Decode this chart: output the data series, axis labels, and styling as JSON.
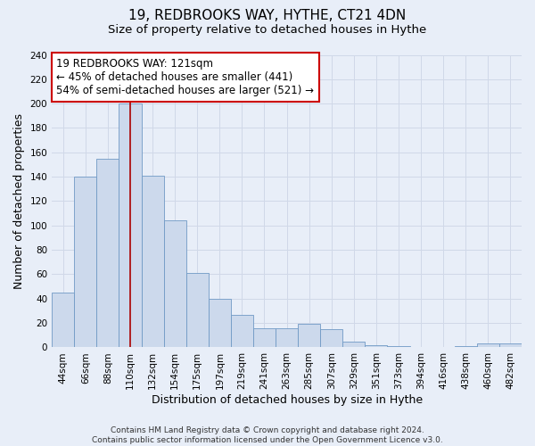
{
  "title": "19, REDBROOKS WAY, HYTHE, CT21 4DN",
  "subtitle": "Size of property relative to detached houses in Hythe",
  "xlabel": "Distribution of detached houses by size in Hythe",
  "ylabel": "Number of detached properties",
  "footer_line1": "Contains HM Land Registry data © Crown copyright and database right 2024.",
  "footer_line2": "Contains public sector information licensed under the Open Government Licence v3.0.",
  "bin_labels": [
    "44sqm",
    "66sqm",
    "88sqm",
    "110sqm",
    "132sqm",
    "154sqm",
    "175sqm",
    "197sqm",
    "219sqm",
    "241sqm",
    "263sqm",
    "285sqm",
    "307sqm",
    "329sqm",
    "351sqm",
    "373sqm",
    "394sqm",
    "416sqm",
    "438sqm",
    "460sqm",
    "482sqm"
  ],
  "bar_heights": [
    45,
    140,
    155,
    200,
    141,
    104,
    61,
    40,
    27,
    16,
    16,
    19,
    15,
    5,
    2,
    1,
    0,
    0,
    1,
    3,
    3
  ],
  "bar_color": "#ccd9ec",
  "bar_edge_color": "#7099c5",
  "highlight_line_color": "#aa0000",
  "annotation_line1": "19 REDBROOKS WAY: 121sqm",
  "annotation_line2": "← 45% of detached houses are smaller (441)",
  "annotation_line3": "54% of semi-detached houses are larger (521) →",
  "annotation_box_color": "#ffffff",
  "annotation_box_edge": "#cc0000",
  "ylim": [
    0,
    240
  ],
  "yticks": [
    0,
    20,
    40,
    60,
    80,
    100,
    120,
    140,
    160,
    180,
    200,
    220,
    240
  ],
  "grid_color": "#d0d8e8",
  "bg_color": "#e8eef8",
  "plot_bg_color": "#e8eef8",
  "title_fontsize": 11,
  "subtitle_fontsize": 9.5,
  "axis_label_fontsize": 9,
  "tick_fontsize": 7.5,
  "annotation_fontsize": 8.5,
  "footer_fontsize": 6.5
}
